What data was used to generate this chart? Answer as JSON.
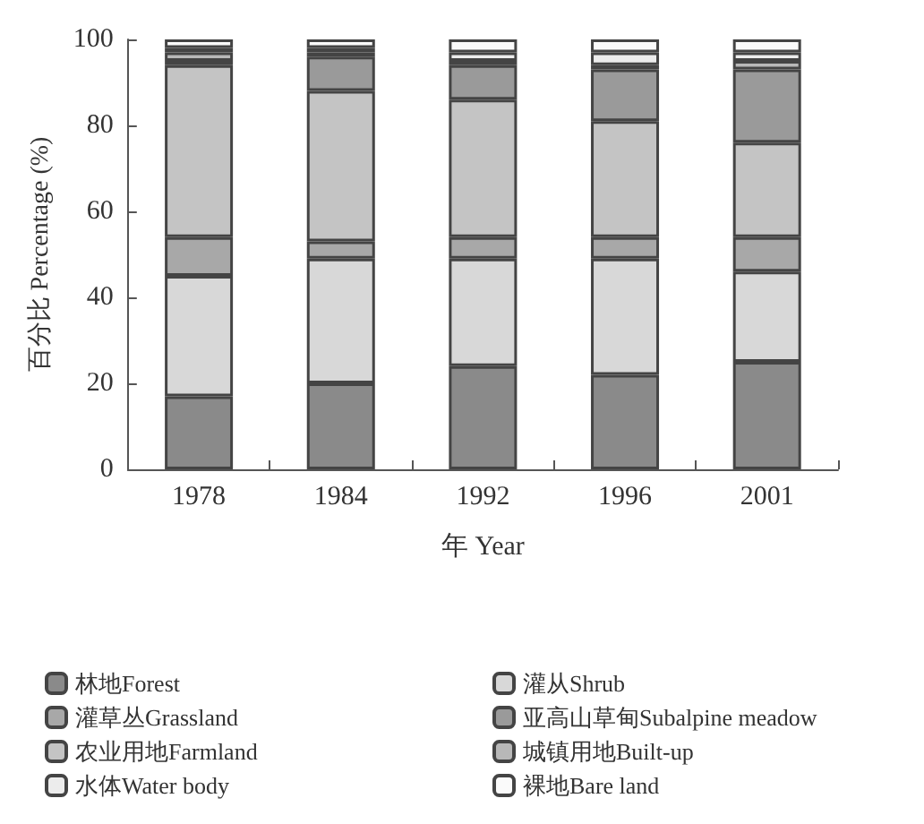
{
  "chart_data": {
    "type": "bar",
    "stacked": true,
    "xlabel": "年 Year",
    "ylabel": "百分比 Percentage (%)",
    "categories": [
      "1978",
      "1984",
      "1992",
      "1996",
      "2001"
    ],
    "ylim": [
      0,
      100
    ],
    "yticks": [
      0,
      20,
      40,
      60,
      80,
      100
    ],
    "grid": false,
    "legend": "bottom",
    "series": [
      {
        "name": "林地Forest",
        "color": "#8a8a8a",
        "values": [
          17,
          20,
          24,
          22,
          25
        ]
      },
      {
        "name": "灌从Shrub",
        "color": "#d8d8d8",
        "values": [
          28,
          29,
          25,
          27,
          21
        ]
      },
      {
        "name": "灌草丛Grassland",
        "color": "#a8a8a8",
        "values": [
          9,
          4,
          5,
          5,
          8
        ]
      },
      {
        "name": "农业用地Farmland",
        "color": "#c4c4c4",
        "values": [
          40,
          35,
          32,
          27,
          22
        ]
      },
      {
        "name": "亚高山草甸Subalpine meadow",
        "color": "#9a9a9a",
        "values": [
          1,
          8,
          8,
          12,
          17
        ]
      },
      {
        "name": "城镇用地Built-up",
        "color": "#b8b8b8",
        "values": [
          2,
          1,
          1,
          1,
          2
        ]
      },
      {
        "name": "水体Water body",
        "color": "#ececec",
        "values": [
          1,
          1,
          2,
          3,
          2
        ]
      },
      {
        "name": "裸地Bare land",
        "color": "#fafafa",
        "values": [
          2,
          2,
          3,
          3,
          3
        ]
      }
    ]
  }
}
